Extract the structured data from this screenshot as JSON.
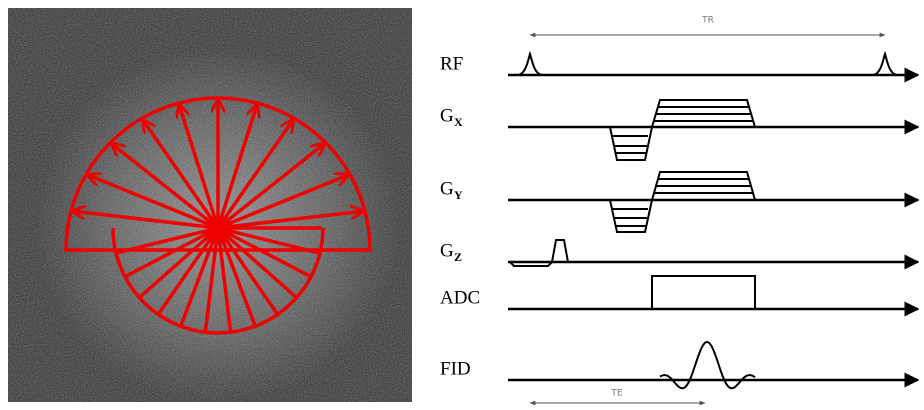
{
  "timing": {
    "tr": "TR",
    "te": "TE"
  },
  "rows": [
    {
      "main": "RF"
    },
    {
      "main": "G",
      "sub": "X"
    },
    {
      "main": "G",
      "sub": "Y"
    },
    {
      "main": "G",
      "sub": "Z"
    },
    {
      "main": "ADC"
    },
    {
      "main": "FID"
    }
  ]
}
